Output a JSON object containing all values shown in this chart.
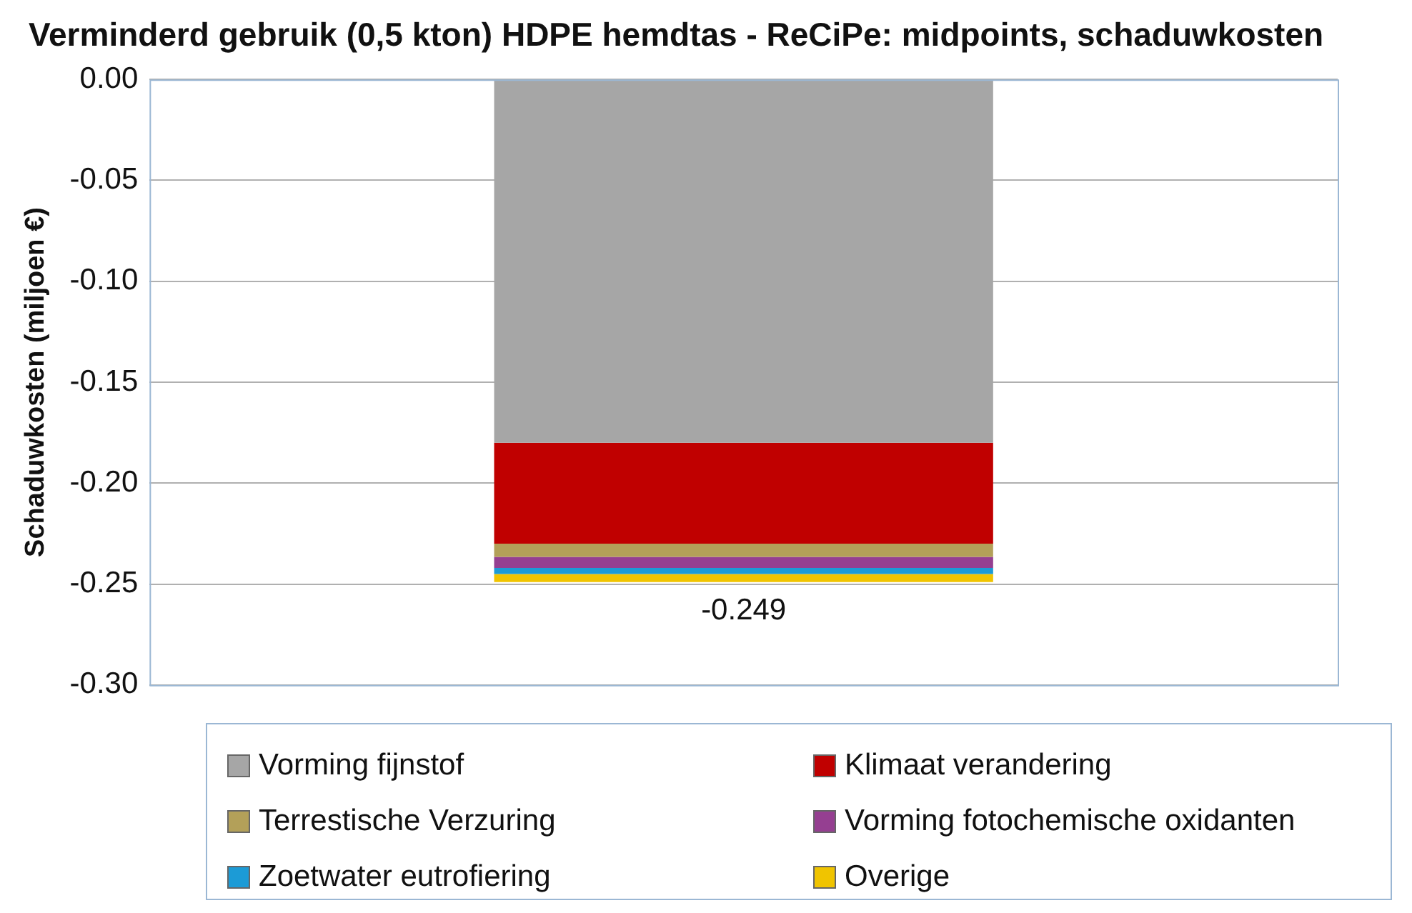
{
  "chart_data": {
    "type": "bar",
    "title": "Verminderd gebruik (0,5 kton) HDPE hemdtas - ReCiPe: midpoints, schaduwkosten",
    "ylabel": "Schaduwkosten (miljoen €)",
    "categories": [
      null
    ],
    "stacked": true,
    "series": [
      {
        "name": "Vorming fijnstof",
        "color": "#a6a6a6",
        "values": [
          -0.18
        ]
      },
      {
        "name": "Klimaat verandering",
        "color": "#c00000",
        "values": [
          -0.05
        ]
      },
      {
        "name": "Terrestische Verzuring",
        "color": "#b3a059",
        "values": [
          -0.0065
        ]
      },
      {
        "name": "Vorming fotochemische oxidanten",
        "color": "#953f91",
        "values": [
          -0.0055
        ]
      },
      {
        "name": "Zoetwater eutrofiering",
        "color": "#1c9bd6",
        "values": [
          -0.003
        ]
      },
      {
        "name": "Overige",
        "color": "#f0c400",
        "values": [
          -0.004
        ]
      }
    ],
    "totals": [
      "-0.249"
    ],
    "ylim": [
      -0.3,
      0
    ],
    "yticks": [
      {
        "value": 0,
        "label": "0.00"
      },
      {
        "value": -0.05,
        "label": "-0.05"
      },
      {
        "value": -0.1,
        "label": "-0.10"
      },
      {
        "value": -0.15,
        "label": "-0.15"
      },
      {
        "value": -0.2,
        "label": "-0.20"
      },
      {
        "value": -0.25,
        "label": "-0.25"
      },
      {
        "value": -0.3,
        "label": "-0.30"
      }
    ],
    "grid": "y",
    "legend": "bottom"
  }
}
